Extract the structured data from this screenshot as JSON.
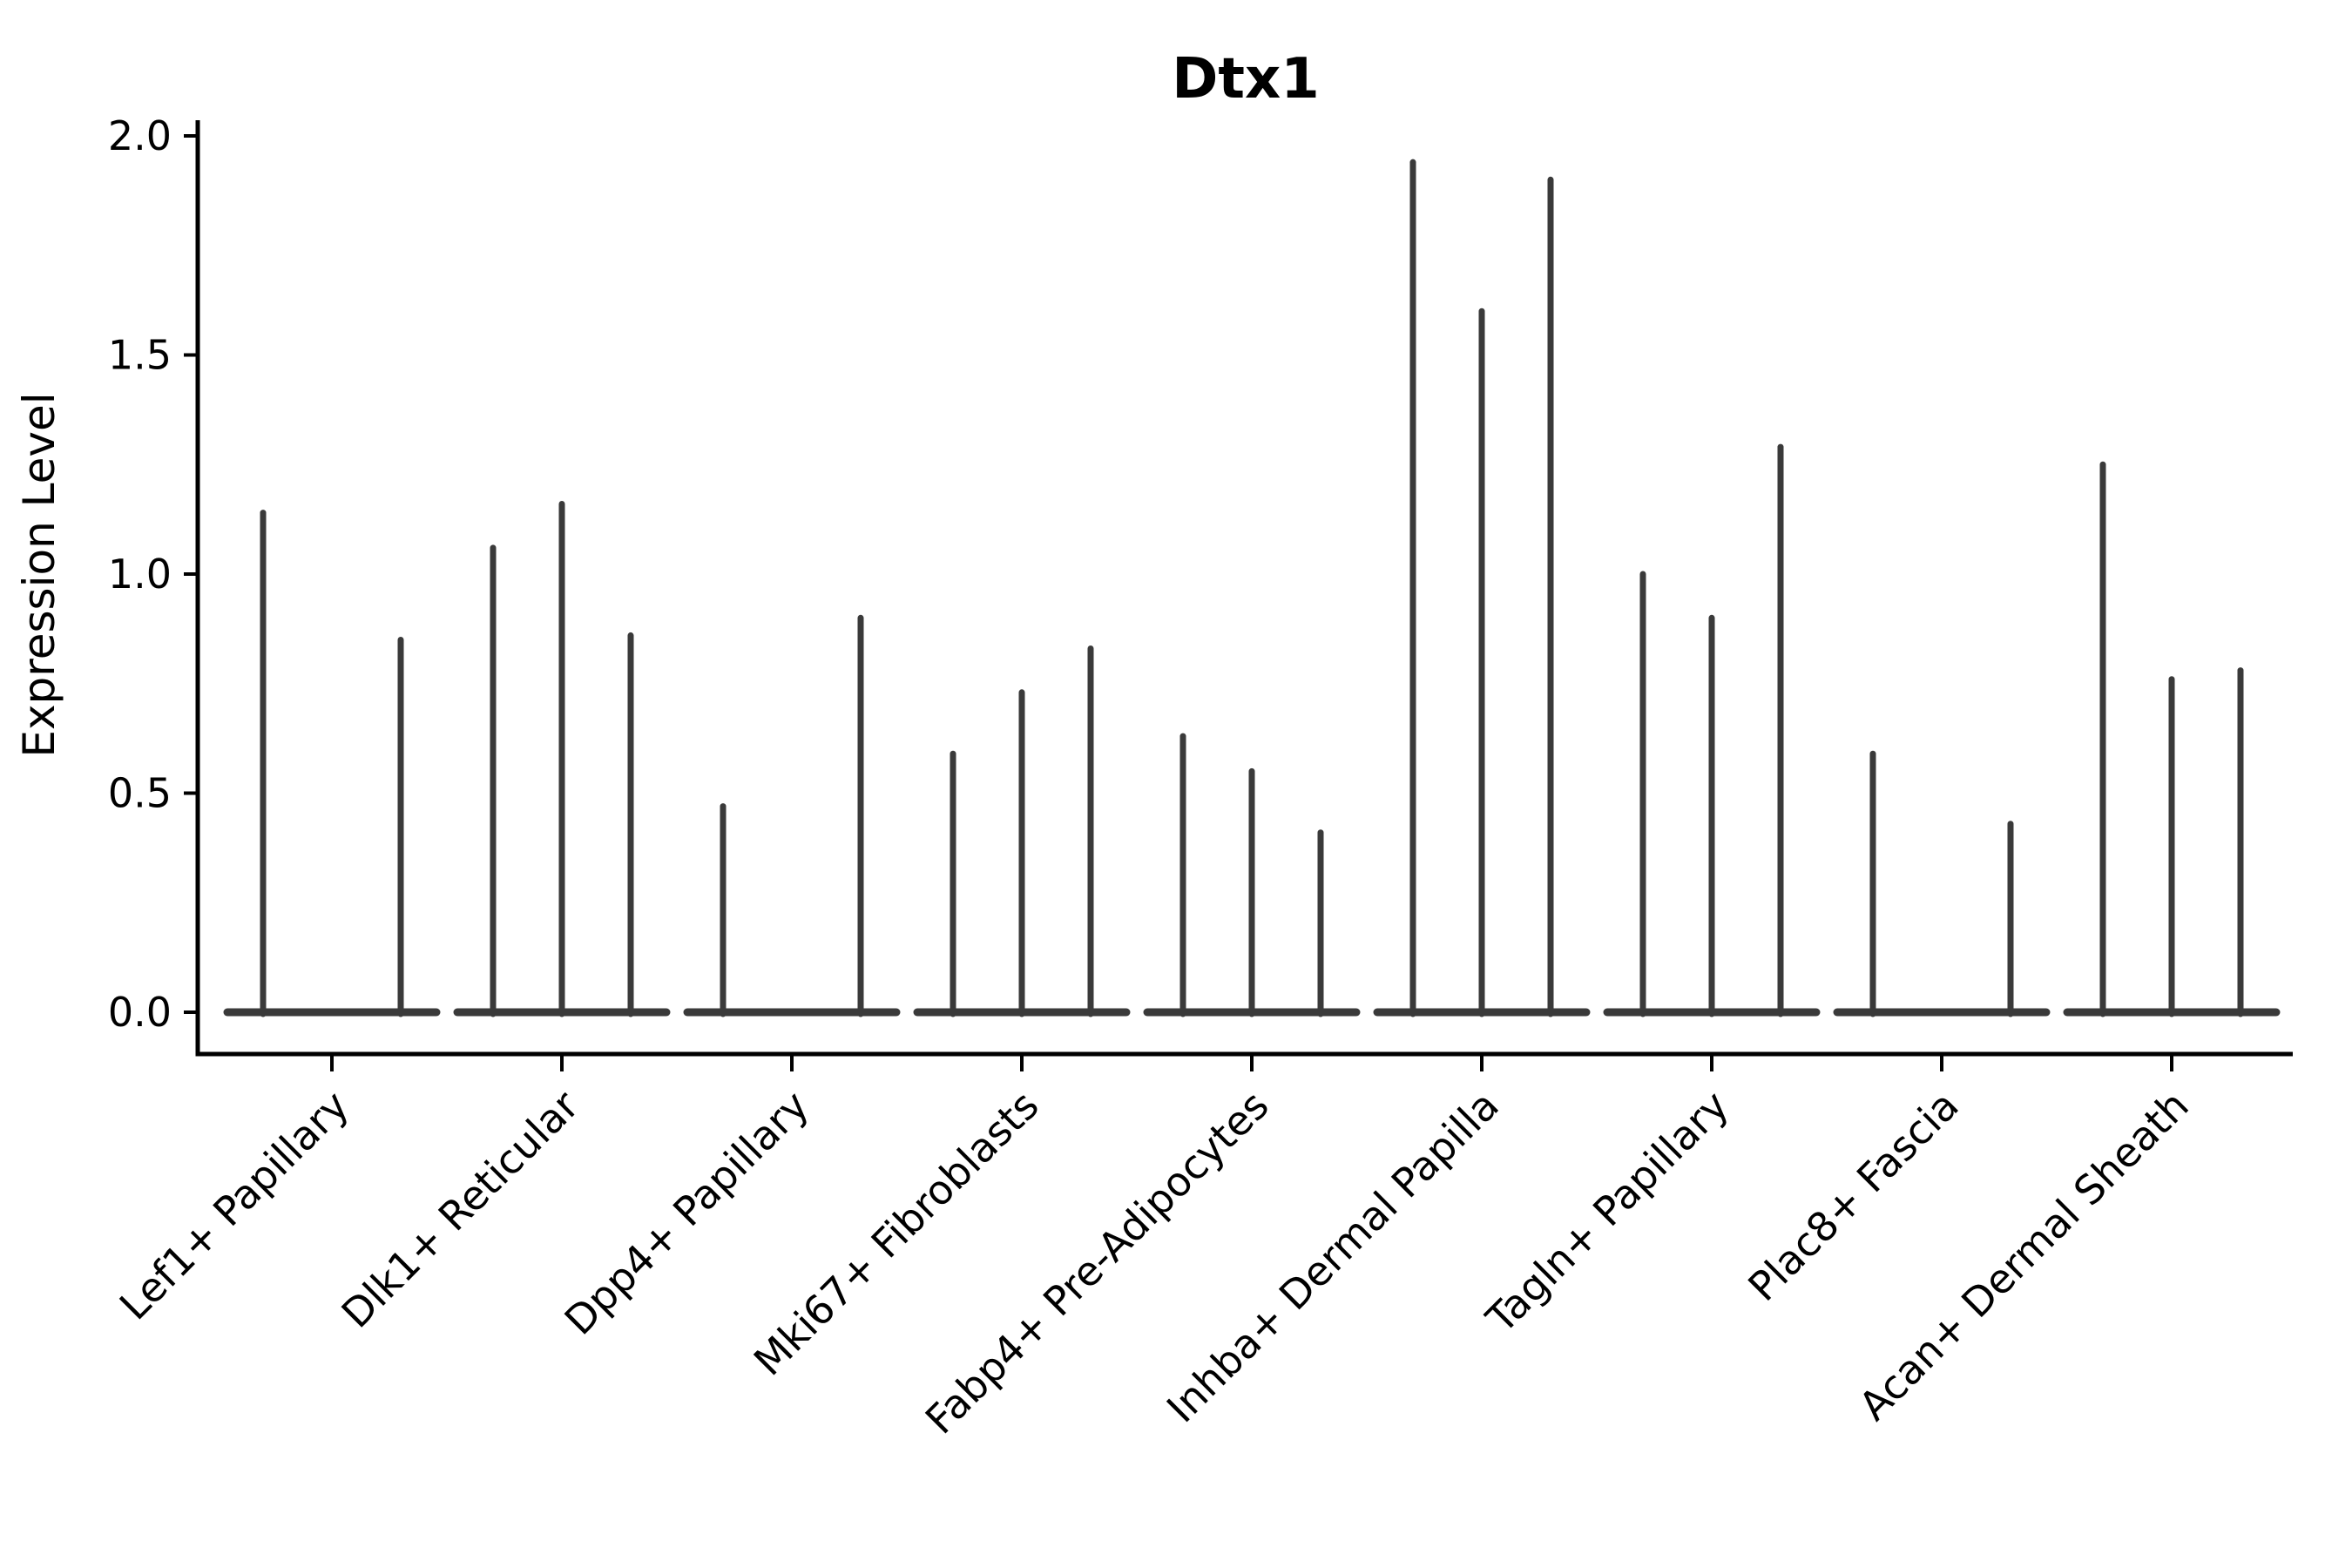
{
  "chart_data": {
    "type": "violin",
    "title": "Dtx1",
    "ylabel": "Expression Level",
    "xlabel": "",
    "grid": false,
    "legend": null,
    "background": "#ffffff",
    "colors": {
      "ink": "#000000",
      "violin": "#3a3a3a"
    },
    "ylim": [
      -0.1,
      2.04
    ],
    "ytick_values": [
      0.0,
      0.5,
      1.0,
      1.5,
      2.0
    ],
    "ytick_labels": [
      "0.0",
      "0.5",
      "1.0",
      "1.5",
      "2.0"
    ],
    "violins_per_category": 3,
    "categories": [
      "Lef1+ Papillary",
      "Dlk1+ Reticular",
      "Dpp4+ Papillary",
      "Mki67+ Fibroblasts",
      "Fabp4+ Pre-Adipocytes",
      "Inhba+ Dermal Papilla",
      "Tagln+ Papillary",
      "Plac8+ Fascia",
      "Acan+ Dermal Sheath"
    ],
    "series": [
      {
        "category": "Lef1+ Papillary",
        "max_expression": [
          1.14,
          0,
          0.85
        ]
      },
      {
        "category": "Dlk1+ Reticular",
        "max_expression": [
          1.06,
          1.16,
          0.86
        ]
      },
      {
        "category": "Dpp4+ Papillary",
        "max_expression": [
          0.47,
          0,
          0.9
        ]
      },
      {
        "category": "Mki67+ Fibroblasts",
        "max_expression": [
          0.59,
          0.73,
          0.83
        ]
      },
      {
        "category": "Fabp4+ Pre-Adipocytes",
        "max_expression": [
          0.63,
          0.55,
          0.41
        ]
      },
      {
        "category": "Inhba+ Dermal Papilla",
        "max_expression": [
          1.94,
          1.6,
          1.9
        ]
      },
      {
        "category": "Tagln+ Papillary",
        "max_expression": [
          1.0,
          0.9,
          1.29
        ]
      },
      {
        "category": "Plac8+ Fascia",
        "max_expression": [
          0.59,
          0,
          0.43
        ]
      },
      {
        "category": "Acan+ Dermal Sheath",
        "max_expression": [
          1.25,
          0.76,
          0.78
        ]
      }
    ]
  }
}
